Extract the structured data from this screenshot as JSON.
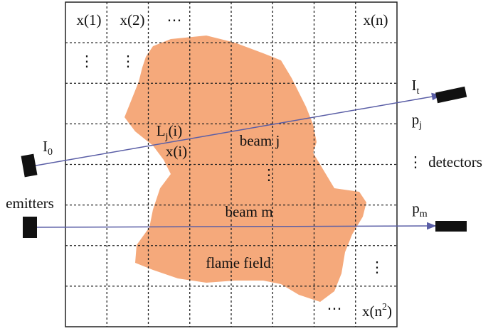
{
  "labels": [
    {
      "text": "x(1)"
    },
    {
      "text": "x(2)"
    },
    {
      "text": "⋯"
    },
    {
      "text": "x(n)"
    },
    {
      "text": "⋮"
    },
    {
      "text": "⋮"
    },
    {
      "text": "I",
      "sub": "t"
    },
    {
      "text": "p",
      "sub": "j"
    },
    {
      "text": "L",
      "sub": "j",
      "after": "(i)"
    },
    {
      "text": "x(i)"
    },
    {
      "text": "beam j"
    },
    {
      "text": "I",
      "sub": "0"
    },
    {
      "text": "⋮"
    },
    {
      "text": "⋮"
    },
    {
      "text": "detectors"
    },
    {
      "text": "emitters"
    },
    {
      "text": "p",
      "sub": "m"
    },
    {
      "text": "beam m"
    },
    {
      "text": "flame field"
    },
    {
      "text": "⋮"
    },
    {
      "text": "⋯"
    },
    {
      "text": "x(n",
      "sup": "2",
      "after": ")"
    }
  ]
}
